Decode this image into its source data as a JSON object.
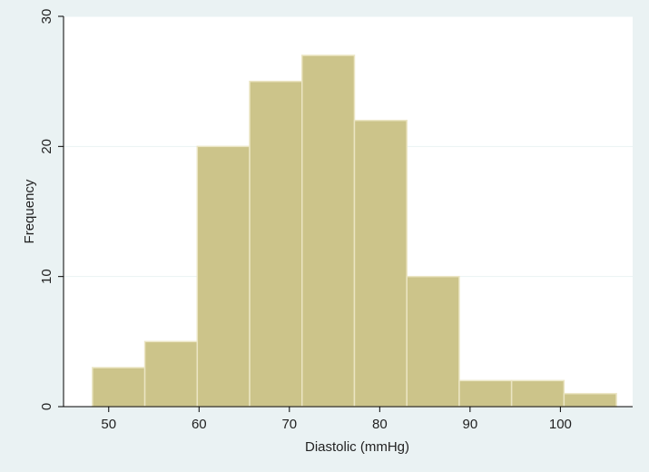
{
  "chart_data": {
    "type": "bar",
    "subtype": "histogram",
    "title": "",
    "xlabel": "Diastolic (mmHg)",
    "ylabel": "Frequency",
    "xlim": [
      45,
      108
    ],
    "ylim": [
      0,
      30
    ],
    "bin_width": 5.8,
    "bins": [
      {
        "start": 48.2,
        "end": 54.0,
        "value": 3
      },
      {
        "start": 54.0,
        "end": 59.8,
        "value": 5
      },
      {
        "start": 59.8,
        "end": 65.6,
        "value": 20
      },
      {
        "start": 65.6,
        "end": 71.4,
        "value": 25
      },
      {
        "start": 71.4,
        "end": 77.2,
        "value": 27
      },
      {
        "start": 77.2,
        "end": 83.0,
        "value": 22
      },
      {
        "start": 83.0,
        "end": 88.8,
        "value": 10
      },
      {
        "start": 88.8,
        "end": 94.6,
        "value": 2
      },
      {
        "start": 94.6,
        "end": 100.4,
        "value": 2
      },
      {
        "start": 100.4,
        "end": 106.2,
        "value": 1
      }
    ],
    "xticks": [
      50,
      60,
      70,
      80,
      90,
      100
    ],
    "xtick_labels": [
      "50",
      "60",
      "70",
      "80",
      "90",
      "100"
    ],
    "yticks": [
      0,
      10,
      20,
      30
    ],
    "ytick_labels": [
      "0",
      "10",
      "20",
      "30"
    ],
    "grid": "horizontal",
    "legend": "none",
    "colors": {
      "background": "#eaf2f3",
      "plot_background": "#ffffff",
      "bar_fill": "#ccc48a",
      "bar_stroke": "#ebe5c3",
      "grid": "#eaf2f3",
      "axis": "#000000"
    }
  }
}
